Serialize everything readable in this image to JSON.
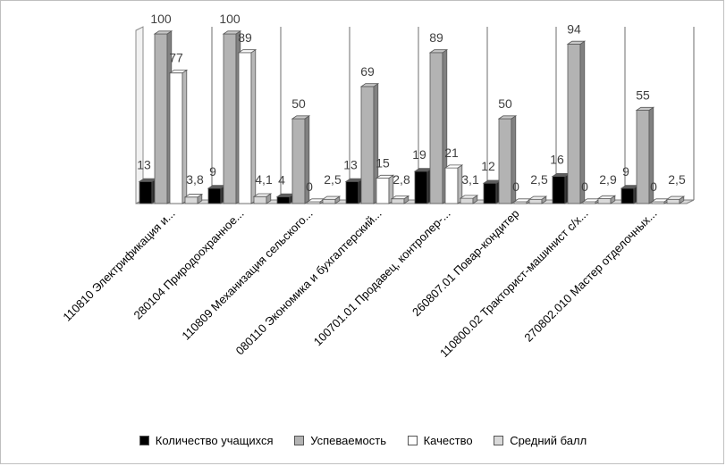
{
  "chart_data": {
    "type": "bar",
    "title": "",
    "xlabel": "",
    "ylabel": "",
    "ylim": [
      0,
      100
    ],
    "grid": "vertical separators",
    "legend_position": "bottom",
    "categories": [
      "110810 Электрификация и...",
      "280104 Природоохранное...",
      "110809 Механизация сельского...",
      "080110 Экономика и бухгалтерский...",
      "100701.01 Продавец, контролер-...",
      "260807.01 Повар-кондитер",
      "110800.02 Тракторист-машинист с/х...",
      "270802.010 Мастер отделочных..."
    ],
    "series": [
      {
        "name": "Количество учащихся",
        "color": "#000000",
        "labels": [
          "13",
          "9",
          "4",
          "13",
          "19",
          "12",
          "16",
          "9"
        ],
        "values": [
          13,
          9,
          4,
          13,
          19,
          12,
          16,
          9
        ]
      },
      {
        "name": "Успеваемость",
        "color": "#b3b3b3",
        "labels": [
          "100",
          "100",
          "50",
          "69",
          "89",
          "50",
          "94",
          "55"
        ],
        "values": [
          100,
          100,
          50,
          69,
          89,
          50,
          94,
          55
        ]
      },
      {
        "name": "Качество",
        "color": "#ffffff",
        "labels": [
          "77",
          "89",
          "0",
          "15",
          "21",
          "0",
          "0",
          "0"
        ],
        "values": [
          77,
          89,
          0,
          15,
          21,
          0,
          0,
          0
        ]
      },
      {
        "name": "Средний балл",
        "color": "#d9d9d9",
        "labels": [
          "3,8",
          "4,1",
          "2,5",
          "2,8",
          "3,1",
          "2,5",
          "2,9",
          "2,5"
        ],
        "values": [
          3.8,
          4.1,
          2.5,
          2.8,
          3.1,
          2.5,
          2.9,
          2.5
        ]
      }
    ]
  }
}
